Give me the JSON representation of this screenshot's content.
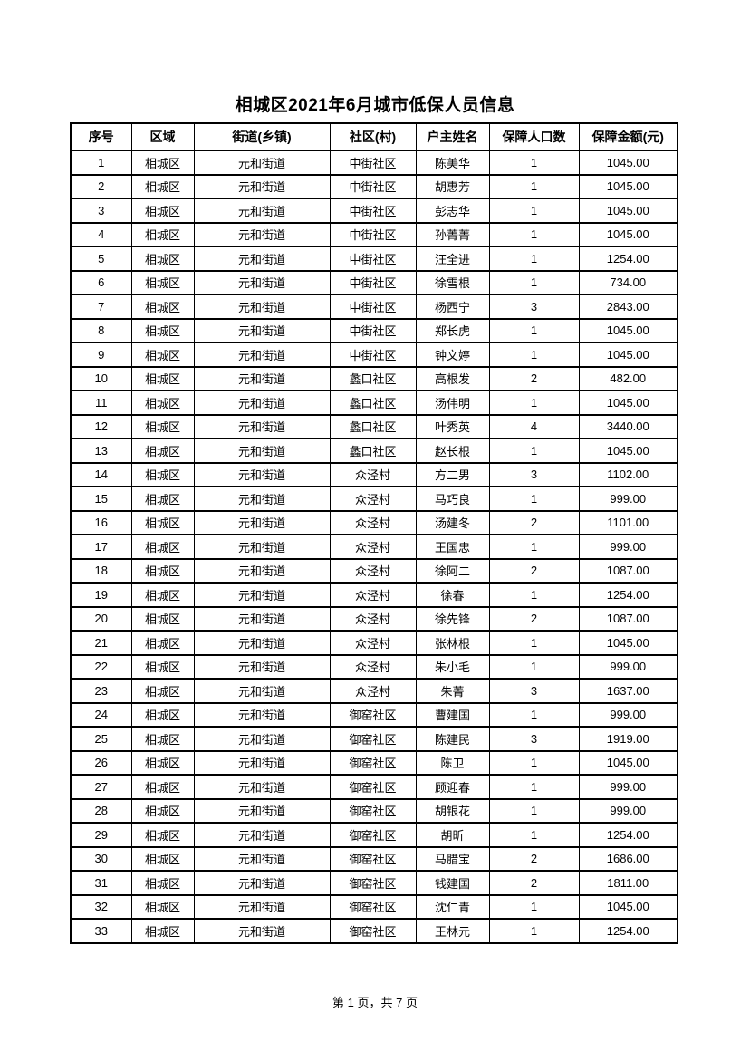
{
  "title": "相城区2021年6月城市低保人员信息",
  "table": {
    "headers": [
      "序号",
      "区域",
      "街道(乡镇)",
      "社区(村)",
      "户主姓名",
      "保障人口数",
      "保障金额(元)"
    ],
    "rows": [
      [
        "1",
        "相城区",
        "元和街道",
        "中街社区",
        "陈美华",
        "1",
        "1045.00"
      ],
      [
        "2",
        "相城区",
        "元和街道",
        "中街社区",
        "胡惠芳",
        "1",
        "1045.00"
      ],
      [
        "3",
        "相城区",
        "元和街道",
        "中街社区",
        "彭志华",
        "1",
        "1045.00"
      ],
      [
        "4",
        "相城区",
        "元和街道",
        "中街社区",
        "孙菁菁",
        "1",
        "1045.00"
      ],
      [
        "5",
        "相城区",
        "元和街道",
        "中街社区",
        "汪全进",
        "1",
        "1254.00"
      ],
      [
        "6",
        "相城区",
        "元和街道",
        "中街社区",
        "徐雪根",
        "1",
        "734.00"
      ],
      [
        "7",
        "相城区",
        "元和街道",
        "中街社区",
        "杨西宁",
        "3",
        "2843.00"
      ],
      [
        "8",
        "相城区",
        "元和街道",
        "中街社区",
        "郑长虎",
        "1",
        "1045.00"
      ],
      [
        "9",
        "相城区",
        "元和街道",
        "中街社区",
        "钟文婷",
        "1",
        "1045.00"
      ],
      [
        "10",
        "相城区",
        "元和街道",
        "蠡口社区",
        "高根发",
        "2",
        "482.00"
      ],
      [
        "11",
        "相城区",
        "元和街道",
        "蠡口社区",
        "汤伟明",
        "1",
        "1045.00"
      ],
      [
        "12",
        "相城区",
        "元和街道",
        "蠡口社区",
        "叶秀英",
        "4",
        "3440.00"
      ],
      [
        "13",
        "相城区",
        "元和街道",
        "蠡口社区",
        "赵长根",
        "1",
        "1045.00"
      ],
      [
        "14",
        "相城区",
        "元和街道",
        "众泾村",
        "方二男",
        "3",
        "1102.00"
      ],
      [
        "15",
        "相城区",
        "元和街道",
        "众泾村",
        "马巧良",
        "1",
        "999.00"
      ],
      [
        "16",
        "相城区",
        "元和街道",
        "众泾村",
        "汤建冬",
        "2",
        "1101.00"
      ],
      [
        "17",
        "相城区",
        "元和街道",
        "众泾村",
        "王国忠",
        "1",
        "999.00"
      ],
      [
        "18",
        "相城区",
        "元和街道",
        "众泾村",
        "徐阿二",
        "2",
        "1087.00"
      ],
      [
        "19",
        "相城区",
        "元和街道",
        "众泾村",
        "徐春",
        "1",
        "1254.00"
      ],
      [
        "20",
        "相城区",
        "元和街道",
        "众泾村",
        "徐先锋",
        "2",
        "1087.00"
      ],
      [
        "21",
        "相城区",
        "元和街道",
        "众泾村",
        "张林根",
        "1",
        "1045.00"
      ],
      [
        "22",
        "相城区",
        "元和街道",
        "众泾村",
        "朱小毛",
        "1",
        "999.00"
      ],
      [
        "23",
        "相城区",
        "元和街道",
        "众泾村",
        "朱菁",
        "3",
        "1637.00"
      ],
      [
        "24",
        "相城区",
        "元和街道",
        "御窑社区",
        "曹建国",
        "1",
        "999.00"
      ],
      [
        "25",
        "相城区",
        "元和街道",
        "御窑社区",
        "陈建民",
        "3",
        "1919.00"
      ],
      [
        "26",
        "相城区",
        "元和街道",
        "御窑社区",
        "陈卫",
        "1",
        "1045.00"
      ],
      [
        "27",
        "相城区",
        "元和街道",
        "御窑社区",
        "顾迎春",
        "1",
        "999.00"
      ],
      [
        "28",
        "相城区",
        "元和街道",
        "御窑社区",
        "胡银花",
        "1",
        "999.00"
      ],
      [
        "29",
        "相城区",
        "元和街道",
        "御窑社区",
        "胡昕",
        "1",
        "1254.00"
      ],
      [
        "30",
        "相城区",
        "元和街道",
        "御窑社区",
        "马腊宝",
        "2",
        "1686.00"
      ],
      [
        "31",
        "相城区",
        "元和街道",
        "御窑社区",
        "钱建国",
        "2",
        "1811.00"
      ],
      [
        "32",
        "相城区",
        "元和街道",
        "御窑社区",
        "沈仁青",
        "1",
        "1045.00"
      ],
      [
        "33",
        "相城区",
        "元和街道",
        "御窑社区",
        "王林元",
        "1",
        "1254.00"
      ]
    ]
  },
  "footer": {
    "page_label": "第 1 页，共 7 页"
  }
}
